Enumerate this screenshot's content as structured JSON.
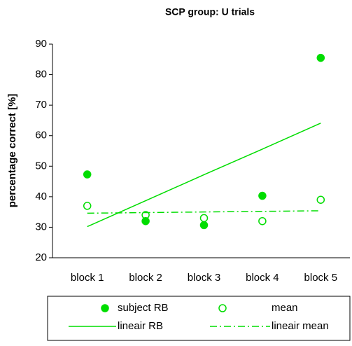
{
  "chart_data": {
    "type": "line",
    "title": "SCP group: U trials",
    "y_label": "percentage correct [%]",
    "categories": [
      "block 1",
      "block 2",
      "block 3",
      "block 4",
      "block 5"
    ],
    "ylim": [
      20,
      90
    ],
    "yticks": [
      20,
      30,
      40,
      50,
      60,
      70,
      80,
      90
    ],
    "series": [
      {
        "name": "subject RB",
        "color": "#00dd00",
        "style": "filled-marker",
        "values": [
          47.3,
          32,
          30.7,
          40.3,
          85.5
        ]
      },
      {
        "name": "mean",
        "color": "#00dd00",
        "style": "open-marker",
        "values": [
          37,
          34,
          33,
          32,
          39
        ]
      },
      {
        "name": "lineair RB",
        "color": "#00dd00",
        "style": "solid-line",
        "values": [
          30.2,
          38.7,
          47.2,
          55.6,
          64.1
        ]
      },
      {
        "name": "lineair mean",
        "color": "#00dd00",
        "style": "dashdot-line",
        "values": [
          34.6,
          34.8,
          35,
          35.2,
          35.4
        ]
      }
    ]
  }
}
